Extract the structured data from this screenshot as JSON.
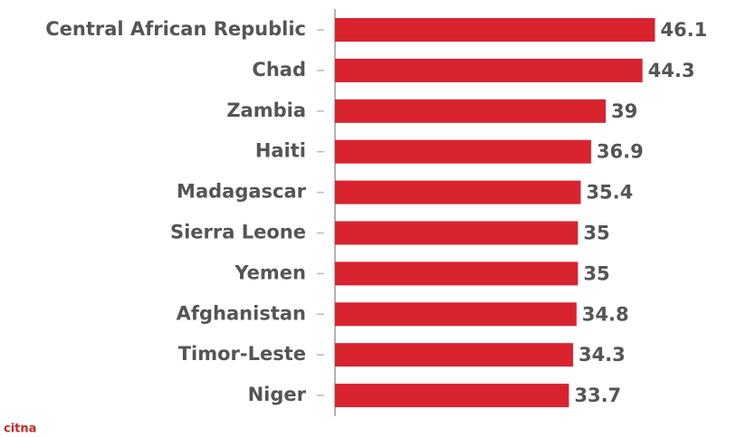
{
  "chart_data": {
    "type": "bar",
    "orientation": "horizontal",
    "categories": [
      "Central African Republic",
      "Chad",
      "Zambia",
      "Haiti",
      "Madagascar",
      "Sierra Leone",
      "Yemen",
      "Afghanistan",
      "Timor-Leste",
      "Niger"
    ],
    "values": [
      46.1,
      44.3,
      39,
      36.9,
      35.4,
      35,
      35,
      34.8,
      34.3,
      33.7
    ],
    "color": "#d9232e",
    "xlim": [
      0,
      60
    ]
  },
  "watermark": "citna"
}
